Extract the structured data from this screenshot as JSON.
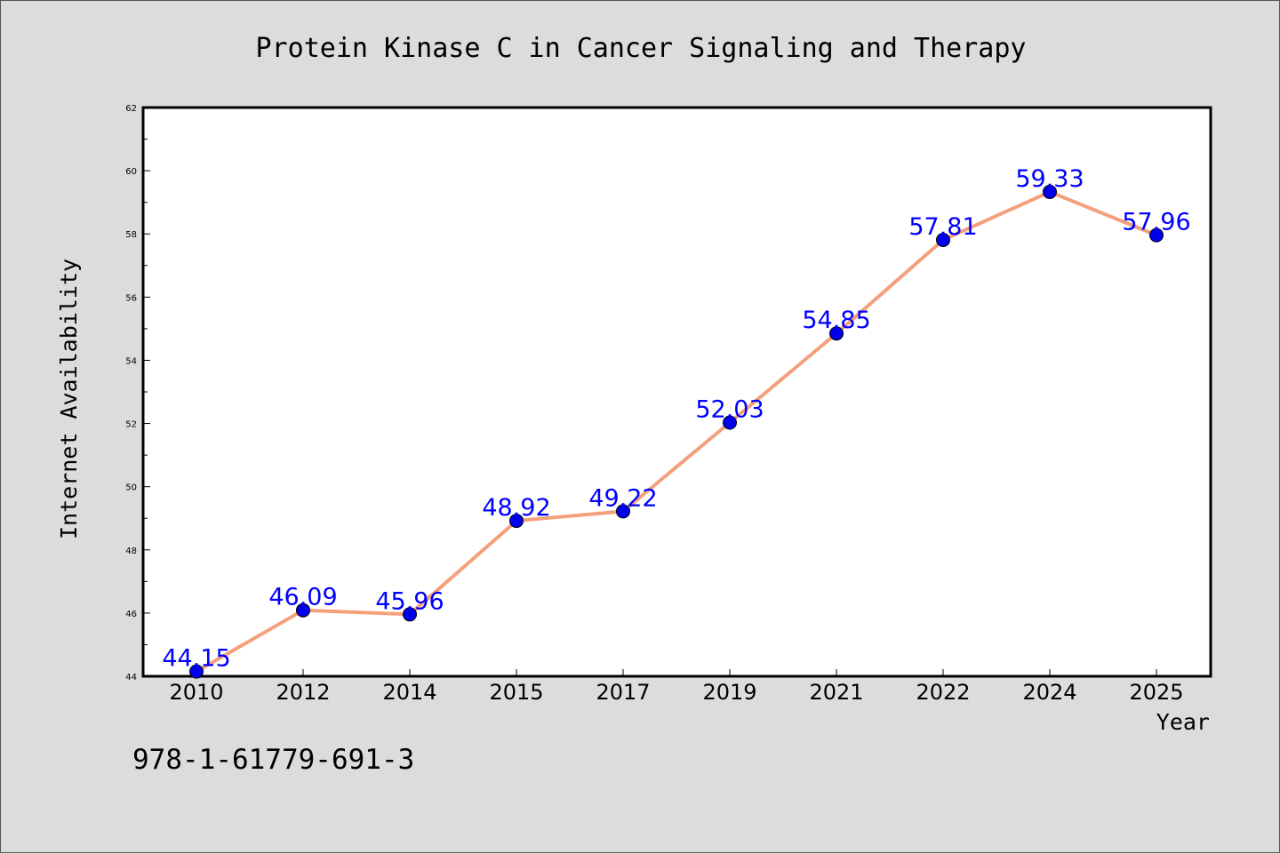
{
  "chart_data": {
    "type": "line",
    "title": "Protein Kinase C in Cancer Signaling and Therapy",
    "xlabel": "Year",
    "ylabel": "Internet Availability",
    "categories": [
      "2010",
      "2012",
      "2014",
      "2015",
      "2017",
      "2019",
      "2021",
      "2022",
      "2024",
      "2025"
    ],
    "series": [
      {
        "values": [
          44.15,
          46.09,
          45.96,
          48.92,
          49.22,
          52.03,
          54.85,
          57.81,
          59.33,
          57.96
        ],
        "labels": [
          "44.15",
          "46.09",
          "45.96",
          "48.92",
          "49.22",
          "52.03",
          "54.85",
          "57.81",
          "59.33",
          "57.96"
        ],
        "line_color": "#f4a07c",
        "marker_color": "#0000ee",
        "label_color": "#0000ff"
      }
    ],
    "ylim": [
      44,
      62
    ],
    "yticks": [
      "44",
      "46",
      "48",
      "50",
      "52",
      "54",
      "56",
      "58",
      "60",
      "62"
    ],
    "grid": false,
    "legend": "none",
    "plot_background": "#ffffff",
    "page_background": "#dcdcdc"
  },
  "annotation": "978-1-61779-691-3"
}
